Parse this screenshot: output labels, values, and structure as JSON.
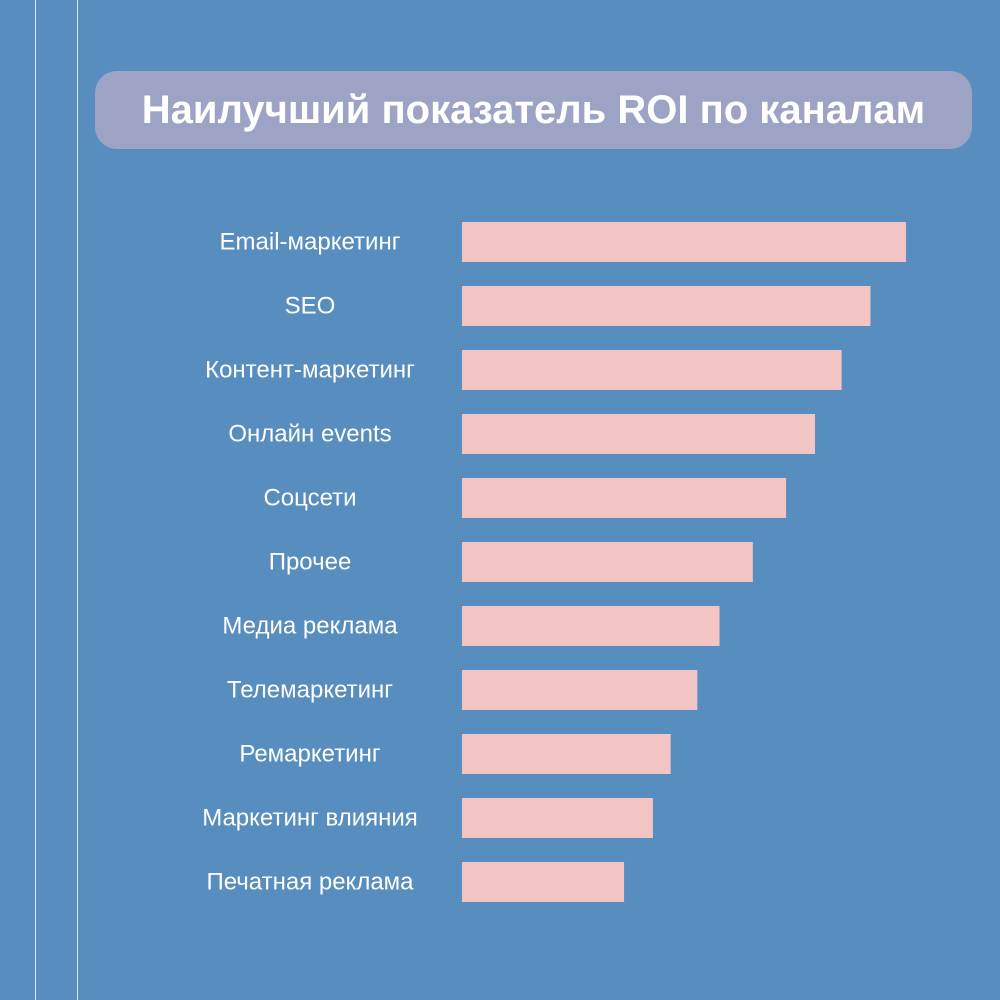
{
  "title": "Наилучший показатель ROI по каналам",
  "colors": {
    "background": "#588dbf",
    "title_pill": "#9da3c5",
    "bar": "#f2c4c4",
    "text": "#ffffff",
    "lines": "#dfe8f3"
  },
  "chart_data": {
    "type": "bar",
    "orientation": "horizontal",
    "categories": [
      "Email-маркетинг",
      "SEO",
      "Контент-маркетинг",
      "Онлайн events",
      "Соцсети",
      "Прочее",
      "Медиа реклама",
      "Телемаркетинг",
      "Ремаркетинг",
      "Маркетинг влияния",
      "Печатная реклама"
    ],
    "values": [
      100,
      92,
      85.5,
      79.5,
      73,
      65.5,
      58,
      53,
      47,
      43,
      36.5
    ],
    "xlim": [
      0,
      100
    ],
    "axes_visible": false,
    "grid": false,
    "legend": "none"
  }
}
